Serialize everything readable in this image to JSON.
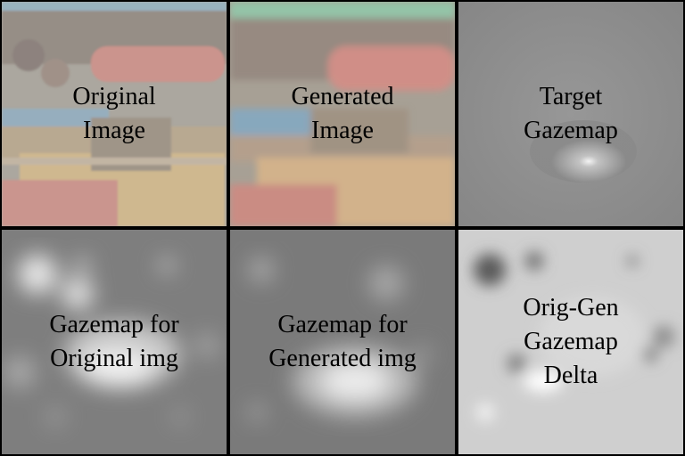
{
  "panels": [
    {
      "id": "original-image",
      "label_lines": [
        "Original",
        "Image"
      ]
    },
    {
      "id": "generated-image",
      "label_lines": [
        "Generated",
        "Image"
      ]
    },
    {
      "id": "target-gazemap",
      "label_lines": [
        "Target",
        "Gazemap"
      ]
    },
    {
      "id": "gazemap-original",
      "label_lines": [
        "Gazemap for",
        "Original img"
      ]
    },
    {
      "id": "gazemap-generated",
      "label_lines": [
        "Gazemap for",
        "Generated img"
      ]
    },
    {
      "id": "gazemap-delta",
      "label_lines": [
        "Orig-Gen",
        "Gazemap",
        "Delta"
      ]
    }
  ],
  "colors": {
    "boat_red": "#c96a62",
    "boat_yellow": "#d9b46a",
    "boat_blue": "#5d8fb0",
    "gazemap_gray": "#8a8a8a",
    "delta_bg": "#d0d0d0"
  }
}
